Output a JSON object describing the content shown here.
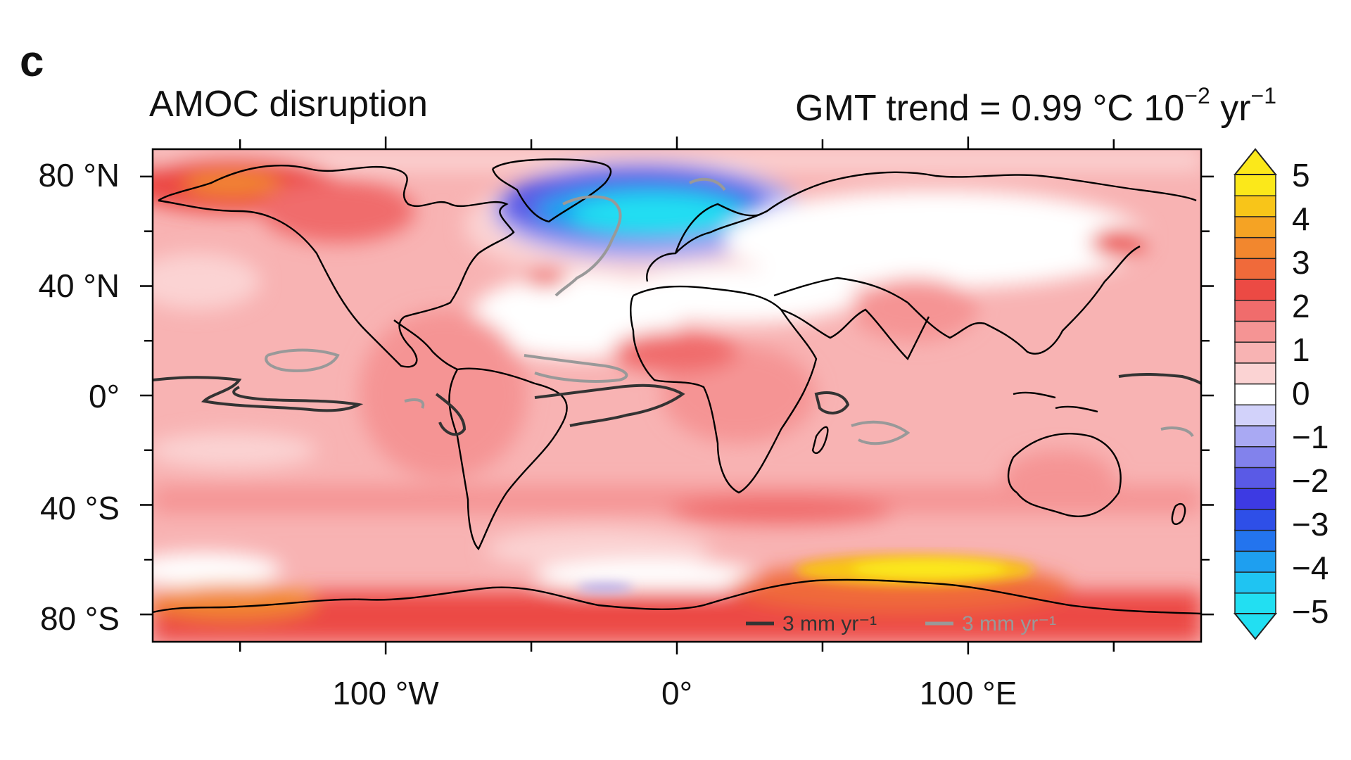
{
  "panel": {
    "letter": "c",
    "title_left": "AMOC disruption",
    "title_right_prefix": "GMT trend = 0.99 °C 10",
    "title_right_exp1": "−2",
    "title_right_mid": " yr",
    "title_right_exp2": "−1"
  },
  "axes": {
    "y_tick_labels": [
      "80 °N",
      "40 °N",
      "0°",
      "40 °S",
      "80 °S"
    ],
    "y_tick_values": [
      80,
      40,
      0,
      -40,
      -80
    ],
    "x_tick_labels": [
      "100 °W",
      "0°",
      "100 °E"
    ],
    "x_tick_values": [
      -100,
      0,
      100
    ],
    "xlim": [
      -180,
      180
    ],
    "ylim": [
      -90,
      90
    ]
  },
  "colorbar": {
    "tick_labels": [
      "5",
      "4",
      "3",
      "2",
      "1",
      "0",
      "−1",
      "−2",
      "−3",
      "−4",
      "−5"
    ],
    "levels": [
      -5,
      -4.5,
      -4,
      -3.5,
      -3,
      -2.5,
      -2,
      -1.5,
      -1,
      -0.5,
      0,
      0.5,
      1,
      1.5,
      2,
      2.5,
      3,
      3.5,
      4,
      4.5,
      5
    ],
    "colors": [
      "#22dff2",
      "#1fc4f2",
      "#1e9ff0",
      "#2374ee",
      "#2e4fe8",
      "#3d3ae3",
      "#5a5ae6",
      "#8282ec",
      "#a9a9f3",
      "#d2d2fa",
      "#ffffff",
      "#fbd3d3",
      "#f8b3b3",
      "#f59494",
      "#f06c6c",
      "#ec4a44",
      "#f06a3a",
      "#f2872e",
      "#f5a324",
      "#f8c519",
      "#fbe81a"
    ]
  },
  "legend": {
    "dark_label": "3 mm yr⁻¹",
    "gray_label": "3 mm yr⁻¹",
    "dark_color": "#333333",
    "gray_color": "#999999"
  }
}
